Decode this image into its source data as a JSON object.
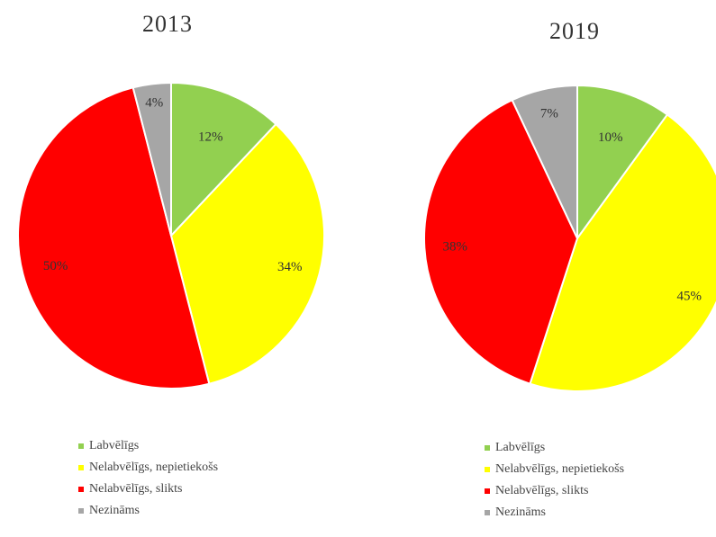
{
  "chart_data": [
    {
      "type": "pie",
      "title": "2013",
      "categories": [
        "Labvēlīgs",
        "Nelabvēlīgs, nepietiekošs",
        "Nelabvēlīgs, slikts",
        "Nezināms"
      ],
      "values": [
        12,
        34,
        50,
        4
      ],
      "labels": [
        "12%",
        "34%",
        "50%",
        "4%"
      ],
      "colors": [
        "#92d050",
        "#ffff00",
        "#ff0000",
        "#a6a6a6"
      ],
      "start_angle_deg": 0,
      "direction": "clockwise",
      "legend_position": "bottom"
    },
    {
      "type": "pie",
      "title": "2019",
      "categories": [
        "Labvēlīgs",
        "Nelabvēlīgs, nepietiekošs",
        "Nelabvēlīgs, slikts",
        "Nezināms"
      ],
      "values": [
        10,
        45,
        38,
        7
      ],
      "labels": [
        "10%",
        "45%",
        "38%",
        "7%"
      ],
      "colors": [
        "#92d050",
        "#ffff00",
        "#ff0000",
        "#a6a6a6"
      ],
      "start_angle_deg": 0,
      "direction": "clockwise",
      "legend_position": "bottom"
    }
  ]
}
